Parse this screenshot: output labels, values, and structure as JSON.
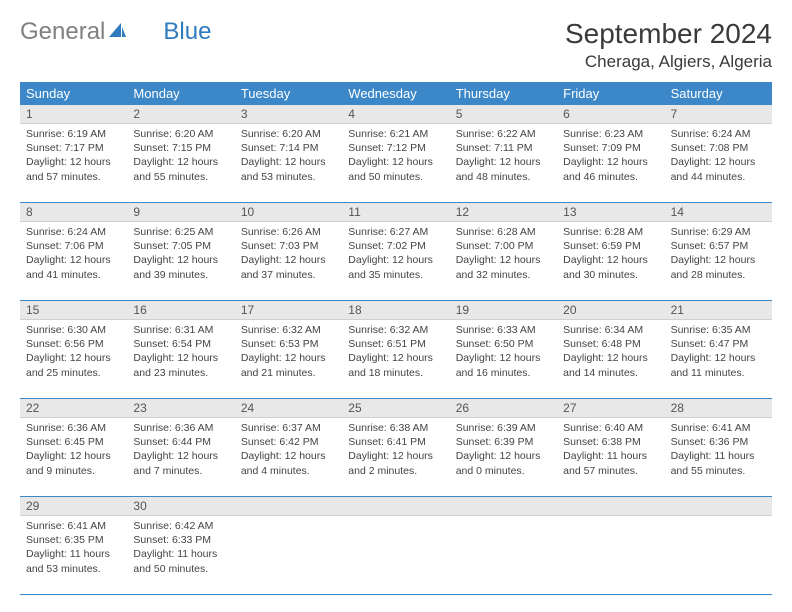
{
  "logo": {
    "text_gray": "General",
    "text_blue": "Blue"
  },
  "title": "September 2024",
  "location": "Cheraga, Algiers, Algeria",
  "header_bg": "#3b87c8",
  "header_text_color": "#ffffff",
  "daynum_bg": "#e8e8e8",
  "border_color": "#3b87c8",
  "day_headers": [
    "Sunday",
    "Monday",
    "Tuesday",
    "Wednesday",
    "Thursday",
    "Friday",
    "Saturday"
  ],
  "weeks": [
    {
      "nums": [
        "1",
        "2",
        "3",
        "4",
        "5",
        "6",
        "7"
      ],
      "cells": [
        {
          "sunrise": "Sunrise: 6:19 AM",
          "sunset": "Sunset: 7:17 PM",
          "daylight1": "Daylight: 12 hours",
          "daylight2": "and 57 minutes."
        },
        {
          "sunrise": "Sunrise: 6:20 AM",
          "sunset": "Sunset: 7:15 PM",
          "daylight1": "Daylight: 12 hours",
          "daylight2": "and 55 minutes."
        },
        {
          "sunrise": "Sunrise: 6:20 AM",
          "sunset": "Sunset: 7:14 PM",
          "daylight1": "Daylight: 12 hours",
          "daylight2": "and 53 minutes."
        },
        {
          "sunrise": "Sunrise: 6:21 AM",
          "sunset": "Sunset: 7:12 PM",
          "daylight1": "Daylight: 12 hours",
          "daylight2": "and 50 minutes."
        },
        {
          "sunrise": "Sunrise: 6:22 AM",
          "sunset": "Sunset: 7:11 PM",
          "daylight1": "Daylight: 12 hours",
          "daylight2": "and 48 minutes."
        },
        {
          "sunrise": "Sunrise: 6:23 AM",
          "sunset": "Sunset: 7:09 PM",
          "daylight1": "Daylight: 12 hours",
          "daylight2": "and 46 minutes."
        },
        {
          "sunrise": "Sunrise: 6:24 AM",
          "sunset": "Sunset: 7:08 PM",
          "daylight1": "Daylight: 12 hours",
          "daylight2": "and 44 minutes."
        }
      ]
    },
    {
      "nums": [
        "8",
        "9",
        "10",
        "11",
        "12",
        "13",
        "14"
      ],
      "cells": [
        {
          "sunrise": "Sunrise: 6:24 AM",
          "sunset": "Sunset: 7:06 PM",
          "daylight1": "Daylight: 12 hours",
          "daylight2": "and 41 minutes."
        },
        {
          "sunrise": "Sunrise: 6:25 AM",
          "sunset": "Sunset: 7:05 PM",
          "daylight1": "Daylight: 12 hours",
          "daylight2": "and 39 minutes."
        },
        {
          "sunrise": "Sunrise: 6:26 AM",
          "sunset": "Sunset: 7:03 PM",
          "daylight1": "Daylight: 12 hours",
          "daylight2": "and 37 minutes."
        },
        {
          "sunrise": "Sunrise: 6:27 AM",
          "sunset": "Sunset: 7:02 PM",
          "daylight1": "Daylight: 12 hours",
          "daylight2": "and 35 minutes."
        },
        {
          "sunrise": "Sunrise: 6:28 AM",
          "sunset": "Sunset: 7:00 PM",
          "daylight1": "Daylight: 12 hours",
          "daylight2": "and 32 minutes."
        },
        {
          "sunrise": "Sunrise: 6:28 AM",
          "sunset": "Sunset: 6:59 PM",
          "daylight1": "Daylight: 12 hours",
          "daylight2": "and 30 minutes."
        },
        {
          "sunrise": "Sunrise: 6:29 AM",
          "sunset": "Sunset: 6:57 PM",
          "daylight1": "Daylight: 12 hours",
          "daylight2": "and 28 minutes."
        }
      ]
    },
    {
      "nums": [
        "15",
        "16",
        "17",
        "18",
        "19",
        "20",
        "21"
      ],
      "cells": [
        {
          "sunrise": "Sunrise: 6:30 AM",
          "sunset": "Sunset: 6:56 PM",
          "daylight1": "Daylight: 12 hours",
          "daylight2": "and 25 minutes."
        },
        {
          "sunrise": "Sunrise: 6:31 AM",
          "sunset": "Sunset: 6:54 PM",
          "daylight1": "Daylight: 12 hours",
          "daylight2": "and 23 minutes."
        },
        {
          "sunrise": "Sunrise: 6:32 AM",
          "sunset": "Sunset: 6:53 PM",
          "daylight1": "Daylight: 12 hours",
          "daylight2": "and 21 minutes."
        },
        {
          "sunrise": "Sunrise: 6:32 AM",
          "sunset": "Sunset: 6:51 PM",
          "daylight1": "Daylight: 12 hours",
          "daylight2": "and 18 minutes."
        },
        {
          "sunrise": "Sunrise: 6:33 AM",
          "sunset": "Sunset: 6:50 PM",
          "daylight1": "Daylight: 12 hours",
          "daylight2": "and 16 minutes."
        },
        {
          "sunrise": "Sunrise: 6:34 AM",
          "sunset": "Sunset: 6:48 PM",
          "daylight1": "Daylight: 12 hours",
          "daylight2": "and 14 minutes."
        },
        {
          "sunrise": "Sunrise: 6:35 AM",
          "sunset": "Sunset: 6:47 PM",
          "daylight1": "Daylight: 12 hours",
          "daylight2": "and 11 minutes."
        }
      ]
    },
    {
      "nums": [
        "22",
        "23",
        "24",
        "25",
        "26",
        "27",
        "28"
      ],
      "cells": [
        {
          "sunrise": "Sunrise: 6:36 AM",
          "sunset": "Sunset: 6:45 PM",
          "daylight1": "Daylight: 12 hours",
          "daylight2": "and 9 minutes."
        },
        {
          "sunrise": "Sunrise: 6:36 AM",
          "sunset": "Sunset: 6:44 PM",
          "daylight1": "Daylight: 12 hours",
          "daylight2": "and 7 minutes."
        },
        {
          "sunrise": "Sunrise: 6:37 AM",
          "sunset": "Sunset: 6:42 PM",
          "daylight1": "Daylight: 12 hours",
          "daylight2": "and 4 minutes."
        },
        {
          "sunrise": "Sunrise: 6:38 AM",
          "sunset": "Sunset: 6:41 PM",
          "daylight1": "Daylight: 12 hours",
          "daylight2": "and 2 minutes."
        },
        {
          "sunrise": "Sunrise: 6:39 AM",
          "sunset": "Sunset: 6:39 PM",
          "daylight1": "Daylight: 12 hours",
          "daylight2": "and 0 minutes."
        },
        {
          "sunrise": "Sunrise: 6:40 AM",
          "sunset": "Sunset: 6:38 PM",
          "daylight1": "Daylight: 11 hours",
          "daylight2": "and 57 minutes."
        },
        {
          "sunrise": "Sunrise: 6:41 AM",
          "sunset": "Sunset: 6:36 PM",
          "daylight1": "Daylight: 11 hours",
          "daylight2": "and 55 minutes."
        }
      ]
    },
    {
      "nums": [
        "29",
        "30",
        "",
        "",
        "",
        "",
        ""
      ],
      "cells": [
        {
          "sunrise": "Sunrise: 6:41 AM",
          "sunset": "Sunset: 6:35 PM",
          "daylight1": "Daylight: 11 hours",
          "daylight2": "and 53 minutes."
        },
        {
          "sunrise": "Sunrise: 6:42 AM",
          "sunset": "Sunset: 6:33 PM",
          "daylight1": "Daylight: 11 hours",
          "daylight2": "and 50 minutes."
        },
        null,
        null,
        null,
        null,
        null
      ]
    }
  ]
}
